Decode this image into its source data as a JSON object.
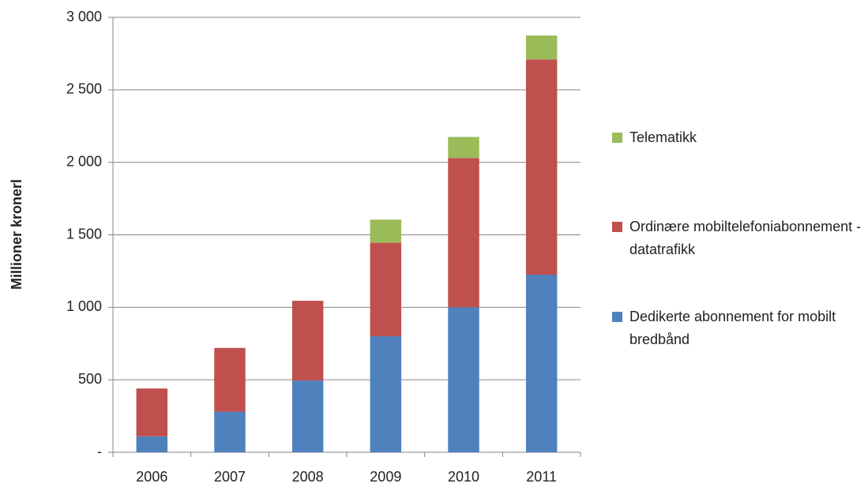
{
  "chart_data": {
    "type": "stacked_bar",
    "y_label": "Millioner kronerl",
    "categories": [
      "2006",
      "2007",
      "2008",
      "2009",
      "2010",
      "2011"
    ],
    "series": [
      {
        "name": "Dedikerte abonnement for mobilt bredbånd",
        "color": "#4f81bd",
        "values": [
          110,
          280,
          495,
          800,
          1000,
          1225
        ]
      },
      {
        "name": "Ordinære mobiltelefoniabonnement - datatrafikk",
        "color": "#c0504d",
        "values": [
          330,
          440,
          550,
          645,
          1030,
          1485
        ]
      },
      {
        "name": "Telematikk",
        "color": "#9bbb59",
        "values": [
          0,
          0,
          0,
          160,
          145,
          165
        ]
      }
    ],
    "ylim": [
      0,
      3000
    ],
    "yticks": [
      {
        "value": 0,
        "label": "-"
      },
      500,
      {
        "value": 1000,
        "label": "1 000"
      },
      {
        "value": 1500,
        "label": "1 500"
      },
      {
        "value": 2000,
        "label": "2 000"
      },
      {
        "value": 2500,
        "label": "2 500"
      },
      {
        "value": 3000,
        "label": "3 000"
      }
    ],
    "grid": true,
    "legend": "right"
  }
}
